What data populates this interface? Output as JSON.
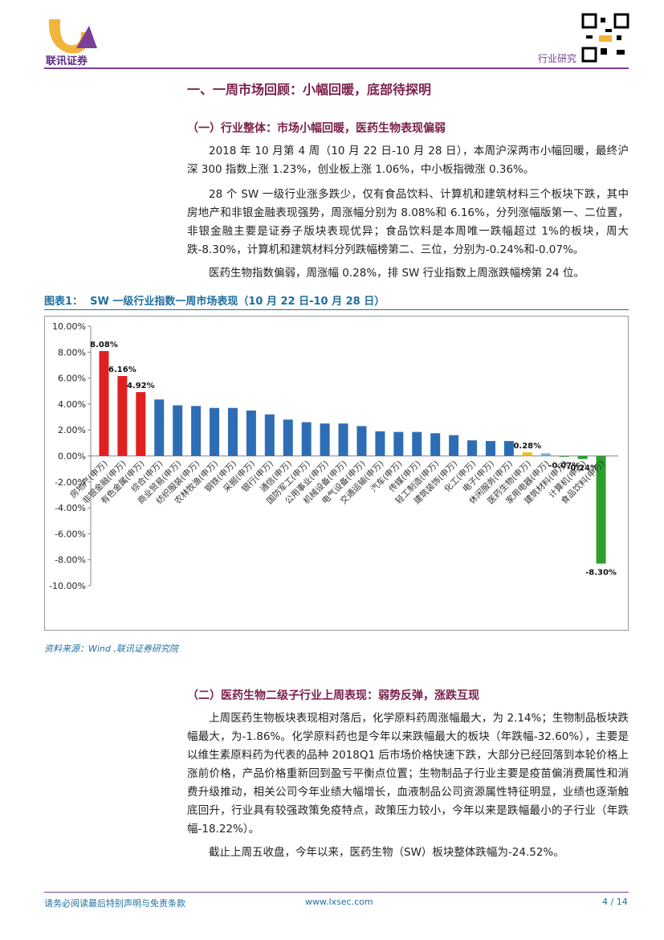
{
  "header": {
    "brand": "联讯证券",
    "section": "行业研究"
  },
  "title": "一、一周市场回顾：小幅回暖，底部待探明",
  "section1": {
    "heading": "（一）行业整体：市场小幅回暖，医药生物表现偏弱",
    "paragraphs": [
      "2018 年 10 月第 4 周（10 月 22 日-10 月 28 日），本周沪深两市小幅回暖，最终沪深 300 指数上涨 1.23%，创业板上涨 1.06%，中小板指微涨 0.36%。",
      "28 个 SW 一级行业涨多跌少，仅有食品饮料、计算机和建筑材料三个板块下跌，其中房地产和非银金融表现强势，周涨幅分别为 8.08%和 6.16%，分列涨幅版第一、二位置，非银金融主要是证券子版块表现优异；食品饮料是本周唯一跌幅超过 1%的板块，周大跌-8.30%，计算机和建筑材料分列跌幅榜第二、三位，分别为-0.24%和-0.07%。",
      "医药生物指数偏弱，周涨幅 0.28%，排 SW 行业指数上周涨跌幅榜第 24 位。"
    ]
  },
  "figure": {
    "caption_label": "图表1：",
    "caption": "SW 一级行业指数一周市场表现（10 月 22 日-10 月 28 日）",
    "source": "资料来源：Wind ,联讯证券研究院"
  },
  "chart_data": {
    "type": "bar",
    "categories": [
      "房地产(申万)",
      "非银金融(申万)",
      "有色金属(申万)",
      "综合(申万)",
      "商业贸易(申万)",
      "纺织服装(申万)",
      "农林牧渔(申万)",
      "钢铁(申万)",
      "采掘(申万)",
      "银行(申万)",
      "通信(申万)",
      "国防军工(申万)",
      "公用事业(申万)",
      "机械设备(申万)",
      "电气设备(申万)",
      "交通运输(申万)",
      "汽车(申万)",
      "传媒(申万)",
      "轻工制造(申万)",
      "建筑装饰(申万)",
      "化工(申万)",
      "电子(申万)",
      "休闲服务(申万)",
      "医药生物(申万)",
      "家用电器(申万)",
      "建筑材料(申万)",
      "计算机(申万)",
      "食品饮料(申万)"
    ],
    "values": [
      8.08,
      6.16,
      4.92,
      4.35,
      3.9,
      3.85,
      3.7,
      3.7,
      3.5,
      3.2,
      2.8,
      2.6,
      2.5,
      2.5,
      2.3,
      1.9,
      1.85,
      1.85,
      1.75,
      1.6,
      1.2,
      1.15,
      1.15,
      0.28,
      0.2,
      -0.07,
      -0.24,
      -8.3
    ],
    "value_labels": [
      "8.08%",
      "6.16%",
      "4.92%",
      null,
      null,
      null,
      null,
      null,
      null,
      null,
      null,
      null,
      null,
      null,
      null,
      null,
      null,
      null,
      null,
      null,
      null,
      null,
      null,
      "0.28%",
      null,
      "-0.07%",
      "-0.24%",
      "-8.30%"
    ],
    "colors": [
      "#e02020",
      "#e02020",
      "#e02020",
      "#2e6db4",
      "#2e6db4",
      "#2e6db4",
      "#2e6db4",
      "#2e6db4",
      "#2e6db4",
      "#2e6db4",
      "#2e6db4",
      "#2e6db4",
      "#2e6db4",
      "#2e6db4",
      "#2e6db4",
      "#2e6db4",
      "#2e6db4",
      "#2e6db4",
      "#2e6db4",
      "#2e6db4",
      "#2e6db4",
      "#2e6db4",
      "#2e6db4",
      "#f0c020",
      "#7fb0e0",
      "#2ca02c",
      "#2ca02c",
      "#2ca02c"
    ],
    "ylim": [
      -10,
      10
    ],
    "yticks": [
      {
        "value": -10,
        "label": "-10.00%"
      },
      {
        "value": -8,
        "label": "-8.00%"
      },
      {
        "value": -6,
        "label": "-6.00%"
      },
      {
        "value": -4,
        "label": "-4.00%"
      },
      {
        "value": -2,
        "label": "-2.00%"
      },
      {
        "value": 0,
        "label": "0.00%"
      },
      {
        "value": 2,
        "label": "2.00%"
      },
      {
        "value": 4,
        "label": "4.00%"
      },
      {
        "value": 6,
        "label": "6.00%"
      },
      {
        "value": 8,
        "label": "8.00%"
      },
      {
        "value": 10,
        "label": "10.00%"
      }
    ]
  },
  "section2": {
    "heading": "（二）医药生物二级子行业上周表现：弱势反弹，涨跌互现",
    "paragraphs": [
      "上周医药生物板块表现相对落后，化学原料药周涨幅最大，为 2.14%；生物制品板块跌幅最大，为-1.86%。化学原料药也是今年以来跌幅最大的板块（年跌幅-32.60%），主要是以维生素原料药为代表的品种 2018Q1 后市场价格快速下跌，大部分已经回落到本轮价格上涨前价格，产品价格重新回到盈亏平衡点位置；生物制品子行业主要是疫苗偏消费属性和消费升级推动，相关公司今年业绩大幅增长，血液制品公司资源属性特征明显，业绩也逐渐触底回升，行业具有较强政策免疫特点，政策压力较小，今年以来是跌幅最小的子行业（年跌幅-18.22%）。",
      "截止上周五收盘，今年以来，医药生物（SW）板块整体跌幅为-24.52%。"
    ]
  },
  "footer": {
    "disclaimer": "请务必阅读最后特别声明与免责条款",
    "website": "www.lxsec.com",
    "page": "4 / 14"
  }
}
